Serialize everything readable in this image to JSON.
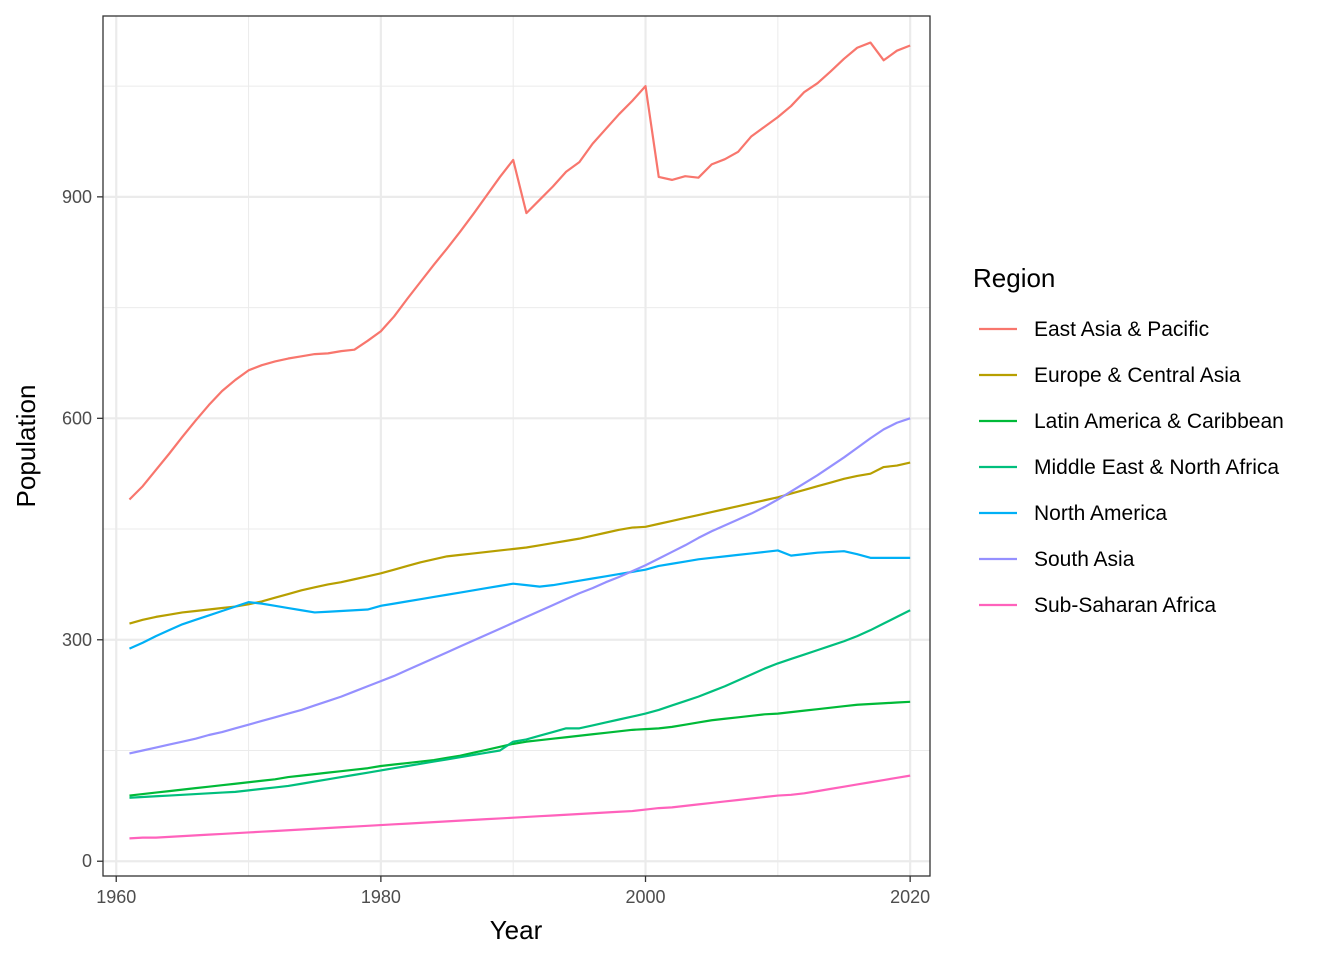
{
  "chart_data": {
    "type": "line",
    "xlabel": "Year",
    "ylabel": "Population",
    "xlim": [
      1959,
      2021.5
    ],
    "ylim": [
      -20,
      1145
    ],
    "x_ticks": [
      1960,
      1980,
      2000,
      2020
    ],
    "x_tick_labels": [
      "1960",
      "1980",
      "2000",
      "2020"
    ],
    "y_ticks": [
      0,
      300,
      600,
      900
    ],
    "y_tick_labels": [
      "0",
      "300",
      "600",
      "900"
    ],
    "grid": true,
    "legend_position": "right",
    "legend_title": "Region",
    "series": [
      {
        "name": "East Asia & Pacific",
        "color": "#F8766D",
        "x": [
          1961,
          1962,
          1963,
          1964,
          1965,
          1966,
          1967,
          1968,
          1969,
          1970,
          1971,
          1972,
          1973,
          1974,
          1975,
          1976,
          1977,
          1978,
          1979,
          1980,
          1981,
          1982,
          1983,
          1984,
          1985,
          1986,
          1987,
          1988,
          1989,
          1990,
          1991,
          1992,
          1993,
          1994,
          1995,
          1996,
          1997,
          1998,
          1999,
          2000,
          2001,
          2002,
          2003,
          2004,
          2005,
          2006,
          2007,
          2008,
          2009,
          2010,
          2011,
          2012,
          2013,
          2014,
          2015,
          2016,
          2017,
          2018,
          2019,
          2020
        ],
        "y": [
          490,
          508,
          530,
          552,
          575,
          597,
          618,
          637,
          652,
          665,
          672,
          677,
          681,
          684,
          687,
          688,
          691,
          693,
          705,
          718,
          738,
          762,
          785,
          808,
          830,
          853,
          877,
          902,
          927,
          950,
          878,
          896,
          914,
          934,
          947,
          972,
          992,
          1012,
          1030,
          1050,
          927,
          923,
          928,
          926,
          944,
          951,
          961,
          982,
          995,
          1008,
          1023,
          1042,
          1054,
          1070,
          1087,
          1102,
          1109,
          1085,
          1098,
          1105
        ]
      },
      {
        "name": "Europe & Central Asia",
        "color": "#B79F00",
        "x": [
          1961,
          1962,
          1963,
          1964,
          1965,
          1966,
          1967,
          1968,
          1969,
          1970,
          1971,
          1972,
          1973,
          1974,
          1975,
          1976,
          1977,
          1978,
          1979,
          1980,
          1981,
          1982,
          1983,
          1984,
          1985,
          1986,
          1987,
          1988,
          1989,
          1990,
          1991,
          1992,
          1993,
          1994,
          1995,
          1996,
          1997,
          1998,
          1999,
          2000,
          2001,
          2002,
          2003,
          2004,
          2005,
          2006,
          2007,
          2008,
          2009,
          2010,
          2011,
          2012,
          2013,
          2014,
          2015,
          2016,
          2017,
          2018,
          2019,
          2020
        ],
        "y": [
          322,
          327,
          331,
          334,
          337,
          339,
          341,
          343,
          345,
          348,
          352,
          357,
          362,
          367,
          371,
          375,
          378,
          382,
          386,
          390,
          395,
          400,
          405,
          409,
          413,
          415,
          417,
          419,
          421,
          423,
          425,
          428,
          431,
          434,
          437,
          441,
          445,
          449,
          452,
          453,
          457,
          461,
          465,
          469,
          473,
          477,
          481,
          485,
          489,
          493,
          498,
          503,
          508,
          513,
          518,
          522,
          525,
          534,
          536,
          540
        ]
      },
      {
        "name": "Latin America & Caribbean",
        "color": "#00BA38",
        "x": [
          1961,
          1962,
          1963,
          1964,
          1965,
          1966,
          1967,
          1968,
          1969,
          1970,
          1971,
          1972,
          1973,
          1974,
          1975,
          1976,
          1977,
          1978,
          1979,
          1980,
          1981,
          1982,
          1983,
          1984,
          1985,
          1986,
          1987,
          1988,
          1989,
          1990,
          1991,
          1992,
          1993,
          1994,
          1995,
          1996,
          1997,
          1998,
          1999,
          2000,
          2001,
          2002,
          2003,
          2004,
          2005,
          2006,
          2007,
          2008,
          2009,
          2010,
          2011,
          2012,
          2013,
          2014,
          2015,
          2016,
          2017,
          2018,
          2019,
          2020
        ],
        "y": [
          89,
          91,
          93,
          95,
          97,
          99,
          101,
          103,
          105,
          107,
          109,
          111,
          114,
          116,
          118,
          120,
          122,
          124,
          126,
          129,
          131,
          133,
          135,
          137,
          140,
          143,
          147,
          151,
          155,
          159,
          162,
          164,
          166,
          168,
          170,
          172,
          174,
          176,
          178,
          179,
          180,
          182,
          185,
          188,
          191,
          193,
          195,
          197,
          199,
          200,
          202,
          204,
          206,
          208,
          210,
          212,
          213,
          214,
          215,
          216
        ]
      },
      {
        "name": "Middle East & North Africa",
        "color": "#00BF7D",
        "x": [
          1961,
          1962,
          1963,
          1964,
          1965,
          1966,
          1967,
          1968,
          1969,
          1970,
          1971,
          1972,
          1973,
          1974,
          1975,
          1976,
          1977,
          1978,
          1979,
          1980,
          1981,
          1982,
          1983,
          1984,
          1985,
          1986,
          1987,
          1988,
          1989,
          1990,
          1991,
          1992,
          1993,
          1994,
          1995,
          1996,
          1997,
          1998,
          1999,
          2000,
          2001,
          2002,
          2003,
          2004,
          2005,
          2006,
          2007,
          2008,
          2009,
          2010,
          2011,
          2012,
          2013,
          2014,
          2015,
          2016,
          2017,
          2018,
          2019,
          2020
        ],
        "y": [
          86,
          87,
          88,
          89,
          90,
          91,
          92,
          93,
          94,
          96,
          98,
          100,
          102,
          105,
          108,
          111,
          114,
          117,
          120,
          123,
          126,
          129,
          132,
          135,
          138,
          141,
          144,
          147,
          150,
          162,
          165,
          170,
          175,
          180,
          180,
          184,
          188,
          192,
          196,
          200,
          205,
          211,
          217,
          223,
          230,
          237,
          245,
          253,
          261,
          268,
          274,
          280,
          286,
          292,
          298,
          305,
          313,
          322,
          331,
          340
        ]
      },
      {
        "name": "North America",
        "color": "#00B0F6",
        "x": [
          1961,
          1962,
          1963,
          1964,
          1965,
          1966,
          1967,
          1968,
          1969,
          1970,
          1971,
          1972,
          1973,
          1974,
          1975,
          1976,
          1977,
          1978,
          1979,
          1980,
          1981,
          1982,
          1983,
          1984,
          1985,
          1986,
          1987,
          1988,
          1989,
          1990,
          1991,
          1992,
          1993,
          1994,
          1995,
          1996,
          1997,
          1998,
          1999,
          2000,
          2001,
          2002,
          2003,
          2004,
          2005,
          2006,
          2007,
          2008,
          2009,
          2010,
          2011,
          2012,
          2013,
          2014,
          2015,
          2016,
          2017,
          2018,
          2019,
          2020
        ],
        "y": [
          288,
          296,
          305,
          313,
          321,
          327,
          333,
          339,
          345,
          351,
          349,
          346,
          343,
          340,
          337,
          338,
          339,
          340,
          341,
          346,
          349,
          352,
          355,
          358,
          361,
          364,
          367,
          370,
          373,
          376,
          374,
          372,
          374,
          377,
          380,
          383,
          386,
          389,
          392,
          395,
          400,
          403,
          406,
          409,
          411,
          413,
          415,
          417,
          419,
          421,
          414,
          416,
          418,
          419,
          420,
          416,
          411,
          411,
          411,
          411
        ]
      },
      {
        "name": "South Asia",
        "color": "#9590FF",
        "x": [
          1961,
          1962,
          1963,
          1964,
          1965,
          1966,
          1967,
          1968,
          1969,
          1970,
          1971,
          1972,
          1973,
          1974,
          1975,
          1976,
          1977,
          1978,
          1979,
          1980,
          1981,
          1982,
          1983,
          1984,
          1985,
          1986,
          1987,
          1988,
          1989,
          1990,
          1991,
          1992,
          1993,
          1994,
          1995,
          1996,
          1997,
          1998,
          1999,
          2000,
          2001,
          2002,
          2003,
          2004,
          2005,
          2006,
          2007,
          2008,
          2009,
          2010,
          2011,
          2012,
          2013,
          2014,
          2015,
          2016,
          2017,
          2018,
          2019,
          2020
        ],
        "y": [
          146,
          150,
          154,
          158,
          162,
          166,
          171,
          175,
          180,
          185,
          190,
          195,
          200,
          205,
          211,
          217,
          223,
          230,
          237,
          244,
          251,
          259,
          267,
          275,
          283,
          291,
          299,
          307,
          315,
          323,
          331,
          339,
          347,
          355,
          363,
          370,
          378,
          385,
          393,
          401,
          410,
          419,
          428,
          438,
          447,
          455,
          463,
          471,
          480,
          490,
          501,
          512,
          523,
          535,
          547,
          560,
          573,
          585,
          594,
          600
        ]
      },
      {
        "name": "Sub-Saharan Africa",
        "color": "#FF62BC",
        "x": [
          1961,
          1962,
          1963,
          1964,
          1965,
          1966,
          1967,
          1968,
          1969,
          1970,
          1971,
          1972,
          1973,
          1974,
          1975,
          1976,
          1977,
          1978,
          1979,
          1980,
          1981,
          1982,
          1983,
          1984,
          1985,
          1986,
          1987,
          1988,
          1989,
          1990,
          1991,
          1992,
          1993,
          1994,
          1995,
          1996,
          1997,
          1998,
          1999,
          2000,
          2001,
          2002,
          2003,
          2004,
          2005,
          2006,
          2007,
          2008,
          2009,
          2010,
          2011,
          2012,
          2013,
          2014,
          2015,
          2016,
          2017,
          2018,
          2019,
          2020
        ],
        "y": [
          31,
          32,
          32,
          33,
          34,
          35,
          36,
          37,
          38,
          39,
          40,
          41,
          42,
          43,
          44,
          45,
          46,
          47,
          48,
          49,
          50,
          51,
          52,
          53,
          54,
          55,
          56,
          57,
          58,
          59,
          60,
          61,
          62,
          63,
          64,
          65,
          66,
          67,
          68,
          70,
          72,
          73,
          75,
          77,
          79,
          81,
          83,
          85,
          87,
          89,
          90,
          92,
          95,
          98,
          101,
          104,
          107,
          110,
          113,
          116
        ]
      }
    ]
  }
}
